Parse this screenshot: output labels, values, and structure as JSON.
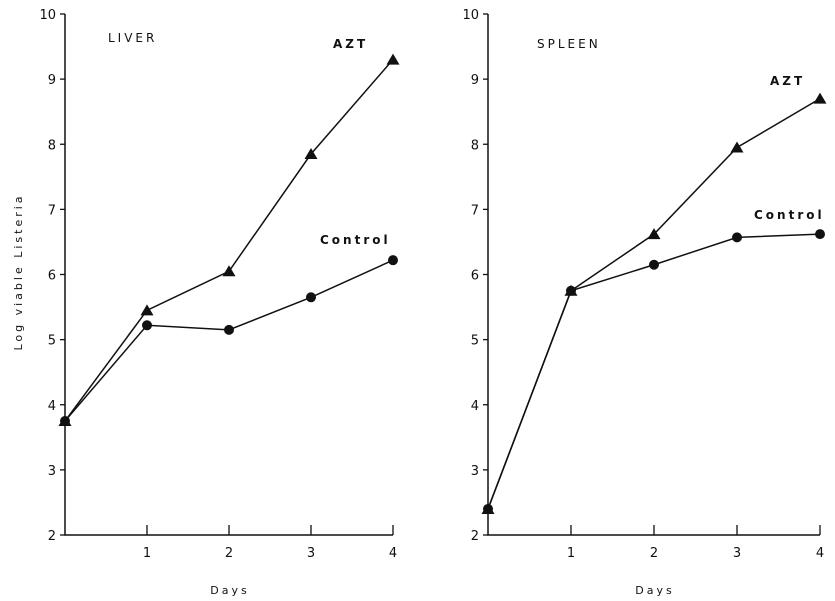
{
  "chart_data": [
    {
      "type": "line",
      "title": "LIVER",
      "xlabel": "Days",
      "ylabel": "Log viable Listeria",
      "x": [
        0,
        1,
        2,
        3,
        4
      ],
      "xticks": [
        "1",
        "2",
        "3",
        "4"
      ],
      "yticks": [
        "2",
        "3",
        "4",
        "5",
        "6",
        "7",
        "8",
        "9",
        "10"
      ],
      "ylim": [
        2,
        10
      ],
      "xlim": [
        0,
        4
      ],
      "series": [
        {
          "name": "AZT",
          "marker": "triangle",
          "values": [
            3.75,
            5.45,
            6.05,
            7.85,
            9.3
          ]
        },
        {
          "name": "Control",
          "marker": "circle",
          "values": [
            3.75,
            5.22,
            5.15,
            5.65,
            6.22
          ]
        }
      ]
    },
    {
      "type": "line",
      "title": "SPLEEN",
      "xlabel": "Days",
      "ylabel": "",
      "x": [
        0,
        1,
        2,
        3,
        4
      ],
      "xticks": [
        "1",
        "2",
        "3",
        "4"
      ],
      "yticks": [
        "2",
        "3",
        "4",
        "5",
        "6",
        "7",
        "8",
        "9",
        "10"
      ],
      "ylim": [
        2,
        10
      ],
      "xlim": [
        0,
        4
      ],
      "series": [
        {
          "name": "AZT",
          "marker": "triangle",
          "values": [
            2.4,
            5.75,
            6.62,
            7.95,
            8.7
          ]
        },
        {
          "name": "Control",
          "marker": "circle",
          "values": [
            2.4,
            5.75,
            6.15,
            6.57,
            6.62
          ]
        }
      ]
    }
  ]
}
